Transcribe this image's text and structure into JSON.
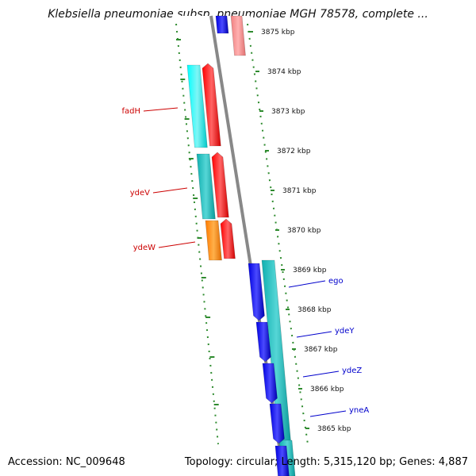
{
  "title": "Klebsiella pneumoniae subsp. pneumoniae MGH 78578, complete ...",
  "footer": {
    "accession": "Accession: NC_009648",
    "summary": "Topology: circular; Length: 5,315,120 bp; Genes: 4,887"
  },
  "colors": {
    "backbone": "#888888",
    "tick": "#2e8b2e",
    "left_label": "#cc0000",
    "right_label": "#0000cc"
  },
  "chart_data": {
    "type": "genome-map",
    "ticks_kbp": [
      3875,
      3874,
      3873,
      3872,
      3871,
      3870,
      3869,
      3868,
      3867,
      3866,
      3865
    ],
    "tick_unit": "kbp",
    "genes": [
      {
        "name": "fadH",
        "strand": "-",
        "color": "#00e5e5",
        "label_color": "#cc0000"
      },
      {
        "name": "ydeV",
        "strand": "-",
        "color": "#20c0c0",
        "label_color": "#cc0000"
      },
      {
        "name": "ydeW",
        "strand": "-",
        "color": "#ff8c00",
        "label_color": "#cc0000"
      },
      {
        "name": "ego",
        "strand": "+",
        "color": "#0000dd",
        "label_color": "#0000cc"
      },
      {
        "name": "ydeY",
        "strand": "+",
        "color": "#0000dd",
        "label_color": "#0000cc"
      },
      {
        "name": "ydeZ",
        "strand": "+",
        "color": "#0000dd",
        "label_color": "#0000cc"
      },
      {
        "name": "yneA",
        "strand": "+",
        "color": "#0000dd",
        "label_color": "#0000cc"
      }
    ]
  }
}
